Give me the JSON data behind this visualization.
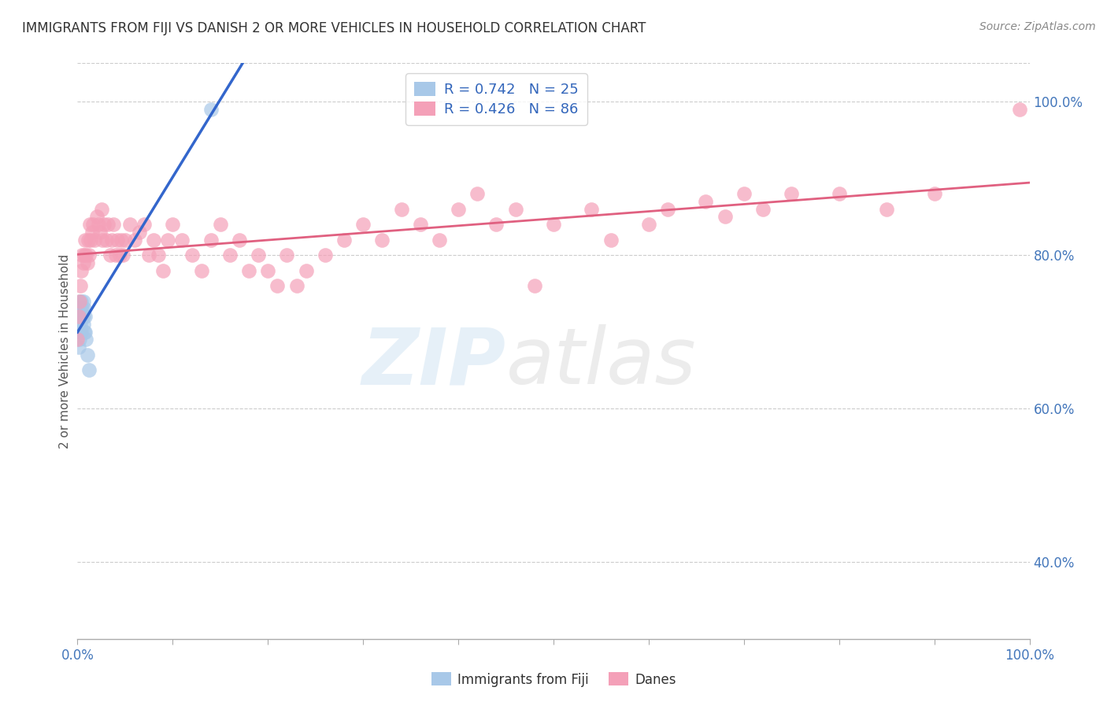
{
  "title": "IMMIGRANTS FROM FIJI VS DANISH 2 OR MORE VEHICLES IN HOUSEHOLD CORRELATION CHART",
  "source": "Source: ZipAtlas.com",
  "ylabel": "2 or more Vehicles in Household",
  "xlim": [
    0.0,
    1.0
  ],
  "ylim": [
    0.3,
    1.05
  ],
  "yticks": [
    0.4,
    0.6,
    0.8,
    1.0
  ],
  "yticklabels": [
    "40.0%",
    "60.0%",
    "80.0%",
    "100.0%"
  ],
  "fiji_color": "#a8c8e8",
  "danes_color": "#f4a0b8",
  "fiji_line_color": "#3366cc",
  "danes_line_color": "#e06080",
  "legend_fiji_r": "R = 0.742",
  "legend_fiji_n": "N = 25",
  "legend_danes_r": "R = 0.426",
  "legend_danes_n": "N = 86",
  "fiji_x": [
    0.0,
    0.001,
    0.001,
    0.002,
    0.002,
    0.002,
    0.003,
    0.003,
    0.003,
    0.004,
    0.004,
    0.004,
    0.005,
    0.005,
    0.006,
    0.006,
    0.006,
    0.007,
    0.007,
    0.008,
    0.008,
    0.009,
    0.01,
    0.012,
    0.14
  ],
  "fiji_y": [
    0.7,
    0.68,
    0.71,
    0.69,
    0.72,
    0.74,
    0.71,
    0.73,
    0.7,
    0.72,
    0.74,
    0.7,
    0.73,
    0.72,
    0.72,
    0.74,
    0.71,
    0.73,
    0.7,
    0.72,
    0.7,
    0.69,
    0.67,
    0.65,
    0.99
  ],
  "danes_x": [
    0.0,
    0.001,
    0.002,
    0.003,
    0.004,
    0.005,
    0.006,
    0.007,
    0.008,
    0.009,
    0.01,
    0.011,
    0.012,
    0.013,
    0.014,
    0.015,
    0.016,
    0.018,
    0.02,
    0.022,
    0.024,
    0.025,
    0.026,
    0.028,
    0.03,
    0.032,
    0.034,
    0.036,
    0.038,
    0.04,
    0.042,
    0.044,
    0.046,
    0.048,
    0.05,
    0.055,
    0.06,
    0.065,
    0.07,
    0.075,
    0.08,
    0.085,
    0.09,
    0.095,
    0.1,
    0.11,
    0.12,
    0.13,
    0.14,
    0.15,
    0.16,
    0.17,
    0.18,
    0.19,
    0.2,
    0.21,
    0.22,
    0.23,
    0.24,
    0.26,
    0.28,
    0.3,
    0.32,
    0.34,
    0.36,
    0.38,
    0.4,
    0.42,
    0.44,
    0.46,
    0.48,
    0.5,
    0.54,
    0.56,
    0.6,
    0.62,
    0.66,
    0.68,
    0.7,
    0.72,
    0.75,
    0.8,
    0.85,
    0.9,
    0.99
  ],
  "danes_y": [
    0.69,
    0.72,
    0.74,
    0.76,
    0.78,
    0.8,
    0.79,
    0.8,
    0.82,
    0.8,
    0.79,
    0.82,
    0.8,
    0.84,
    0.82,
    0.83,
    0.84,
    0.82,
    0.85,
    0.84,
    0.83,
    0.86,
    0.82,
    0.84,
    0.82,
    0.84,
    0.8,
    0.82,
    0.84,
    0.8,
    0.82,
    0.8,
    0.82,
    0.8,
    0.82,
    0.84,
    0.82,
    0.83,
    0.84,
    0.8,
    0.82,
    0.8,
    0.78,
    0.82,
    0.84,
    0.82,
    0.8,
    0.78,
    0.82,
    0.84,
    0.8,
    0.82,
    0.78,
    0.8,
    0.78,
    0.76,
    0.8,
    0.76,
    0.78,
    0.8,
    0.82,
    0.84,
    0.82,
    0.86,
    0.84,
    0.82,
    0.86,
    0.88,
    0.84,
    0.86,
    0.76,
    0.84,
    0.86,
    0.82,
    0.84,
    0.86,
    0.87,
    0.85,
    0.88,
    0.86,
    0.88,
    0.88,
    0.86,
    0.88,
    0.99
  ]
}
